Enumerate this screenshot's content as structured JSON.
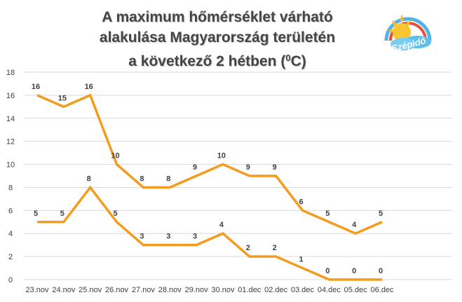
{
  "title": {
    "line1": "A maximum hőmérséklet várható",
    "line2": "alakulása Magyarország területén",
    "line3_main": "a következő 2 hétben (",
    "line3_sup": "0",
    "line3_end": "C)"
  },
  "logo": {
    "text": "Szépidő",
    "icon": "sun-rainbow-logo-icon"
  },
  "colors": {
    "series": "#F39C1F",
    "grid": "#D9D9D9",
    "text": "#404040",
    "title": "#454545"
  },
  "chart_data": {
    "type": "line",
    "title": "A maximum hőmérséklet várható alakulása Magyarország területén a következő 2 hétben (0C)",
    "categories": [
      "23.nov",
      "24.nov",
      "25.nov",
      "26.nov",
      "27.nov",
      "28.nov",
      "29.nov",
      "30.nov",
      "01.dec",
      "02.dec",
      "03.dec",
      "04.dec",
      "05.dec",
      "06.dec"
    ],
    "series": [
      {
        "values": [
          16,
          15,
          16,
          10,
          8,
          8,
          9,
          10,
          9,
          9,
          6,
          5,
          4,
          5
        ]
      },
      {
        "values": [
          5,
          5,
          8,
          5,
          3,
          3,
          3,
          4,
          2,
          2,
          1,
          0,
          0,
          0
        ]
      }
    ],
    "ylim": [
      0,
      18
    ],
    "yticks": [
      0,
      2,
      4,
      6,
      8,
      10,
      12,
      14,
      16,
      18
    ],
    "grid": true,
    "legend": "none"
  }
}
